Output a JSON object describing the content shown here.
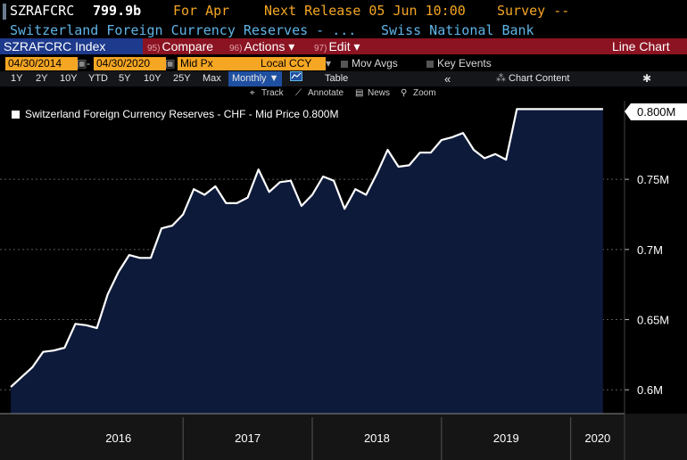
{
  "header": {
    "ticker": "SZRAFCRC",
    "value": "799.9b",
    "for_period": "For Apr",
    "next_release": "Next Release 05 Jun 10:00",
    "survey": "Survey --",
    "security_name": "Switzerland Foreign Currency Reserves - ...",
    "source": "Swiss National Bank"
  },
  "toolbar": {
    "index_label": "SZRAFCRC Index",
    "compare_num": "95)",
    "compare_label": "Compare",
    "actions_num": "96)",
    "actions_label": "Actions",
    "edit_num": "97)",
    "edit_label": "Edit",
    "chart_type": "Line Chart"
  },
  "inputs": {
    "start_date": "04/30/2014",
    "end_date": "04/30/2020",
    "field": "Mid Px",
    "currency": "Local CCY",
    "mov_avgs": "Mov Avgs",
    "key_events": "Key Events"
  },
  "ranges": {
    "items": [
      "1Y",
      "2Y",
      "10Y",
      "YTD",
      "5Y",
      "10Y",
      "25Y",
      "Max"
    ],
    "frequency": "Monthly",
    "frequency_arrow": "▼",
    "table_label": "Table",
    "collapse": "«",
    "chart_content": "Chart Content"
  },
  "tools": {
    "track": "Track",
    "annotate": "Annotate",
    "news": "News",
    "zoom": "Zoom"
  },
  "colors": {
    "accent": "#f5a623",
    "area": "#0e1a3a",
    "line": "#ffffff",
    "header_blue": "#5fb4e6"
  },
  "icons": [
    "gear-icon",
    "chart-icon",
    "track-icon",
    "annotate-icon",
    "news-icon",
    "zoom-icon"
  ],
  "chart_data": {
    "type": "area",
    "legend": "Switzerland Foreign Currency Reserves - CHF - Mid Price 0.800M",
    "last_value_label": "0.800M",
    "x_tick_labels": [
      "2016",
      "2017",
      "2018",
      "2019",
      "2020"
    ],
    "y_tick_labels": [
      "0.6M",
      "0.65M",
      "0.7M",
      "0.75M",
      "0.800M"
    ],
    "y_ticks": [
      0.6,
      0.65,
      0.7,
      0.75,
      0.8
    ],
    "ylim": [
      0.583,
      0.806
    ],
    "xlim": [
      "2015-08",
      "2020-06"
    ],
    "grid": true,
    "series": [
      {
        "x": [
          "2015-09",
          "2015-10",
          "2015-11",
          "2015-12",
          "2016-01",
          "2016-02",
          "2016-03",
          "2016-04",
          "2016-05",
          "2016-06",
          "2016-07",
          "2016-08",
          "2016-09",
          "2016-10",
          "2016-11",
          "2016-12",
          "2017-01",
          "2017-02",
          "2017-03",
          "2017-04",
          "2017-05",
          "2017-06",
          "2017-07",
          "2017-08",
          "2017-09",
          "2017-10",
          "2017-11",
          "2017-12",
          "2018-01",
          "2018-02",
          "2018-03",
          "2018-04",
          "2018-05",
          "2018-06",
          "2018-07",
          "2018-08",
          "2018-09",
          "2018-10",
          "2018-11",
          "2018-12",
          "2019-01",
          "2019-02",
          "2019-03",
          "2019-04",
          "2019-05",
          "2019-06",
          "2019-07",
          "2019-08",
          "2019-09",
          "2019-10",
          "2019-11",
          "2019-12",
          "2020-01",
          "2020-02",
          "2020-03",
          "2020-04"
        ],
        "values": [
          0.602,
          0.609,
          0.616,
          0.627,
          0.628,
          0.63,
          0.647,
          0.646,
          0.644,
          0.668,
          0.684,
          0.696,
          0.694,
          0.694,
          0.715,
          0.717,
          0.725,
          0.743,
          0.739,
          0.745,
          0.733,
          0.733,
          0.737,
          0.757,
          0.741,
          0.748,
          0.749,
          0.731,
          0.739,
          0.752,
          0.749,
          0.729,
          0.743,
          0.739,
          0.754,
          0.771,
          0.759,
          0.76,
          0.769,
          0.769,
          0.778,
          0.78,
          0.783,
          0.771,
          0.765,
          0.768,
          0.764,
          0.8,
          0.8,
          0.8,
          0.8,
          0.8,
          0.8,
          0.8,
          0.8,
          0.8
        ]
      }
    ]
  }
}
